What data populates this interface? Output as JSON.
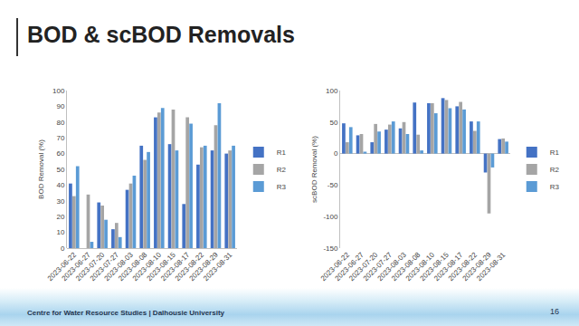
{
  "page": {
    "title": "BOD & scBOD Removals",
    "footer": "Centre for Water Resource Studies | Dalhousie University",
    "number": 16
  },
  "chart_data": [
    {
      "type": "bar",
      "categories": [
        "2023-06-22",
        "2023-06-27",
        "2023-07-20",
        "2023-07-27",
        "2023-08-03",
        "2023-08-08",
        "2023-08-10",
        "2023-08-15",
        "2023-08-17",
        "2023-08-22",
        "2023-08-29",
        "2023-08-31"
      ],
      "y_label": "BOD Removal (%)",
      "series": [
        {
          "name": "R1",
          "color": "#4472c4",
          "values": [
            41,
            null,
            29,
            12,
            37,
            65,
            83,
            66,
            28,
            53,
            62,
            60
          ]
        },
        {
          "name": "R2",
          "color": "#a5a5a5",
          "values": [
            33,
            34,
            27,
            16,
            41,
            56,
            86,
            88,
            83,
            64,
            78,
            62
          ]
        },
        {
          "name": "R3",
          "color": "#5b9bd5",
          "values": [
            52,
            4,
            18,
            7,
            46,
            61,
            89,
            62,
            79,
            65,
            92,
            65
          ]
        }
      ],
      "ylim": [
        0,
        100
      ],
      "yticks": [
        0,
        10,
        20,
        30,
        40,
        50,
        60,
        70,
        80,
        90,
        100
      ],
      "grid": false,
      "legend": "right"
    },
    {
      "type": "bar",
      "categories": [
        "2023-06-22",
        "2023-06-27",
        "2023-07-20",
        "2023-07-27",
        "2023-08-03",
        "2023-08-08",
        "2023-08-10",
        "2023-08-15",
        "2023-08-17",
        "2023-08-22",
        "2023-08-29",
        "2023-08-31"
      ],
      "y_label": "scBOD Removal (%)",
      "series": [
        {
          "name": "R1",
          "color": "#4472c4",
          "values": [
            48,
            29,
            18,
            38,
            40,
            81,
            80,
            88,
            75,
            51,
            -30,
            23
          ]
        },
        {
          "name": "R2",
          "color": "#a5a5a5",
          "values": [
            18,
            31,
            47,
            46,
            50,
            30,
            80,
            85,
            82,
            36,
            -95,
            24
          ]
        },
        {
          "name": "R3",
          "color": "#5b9bd5",
          "values": [
            42,
            3,
            35,
            51,
            31,
            5,
            64,
            72,
            70,
            51,
            -22,
            19
          ]
        }
      ],
      "ylim": [
        -150,
        100
      ],
      "yticks": [
        -150,
        -100,
        -50,
        0,
        50,
        100
      ],
      "grid": false,
      "legend": "right"
    }
  ]
}
